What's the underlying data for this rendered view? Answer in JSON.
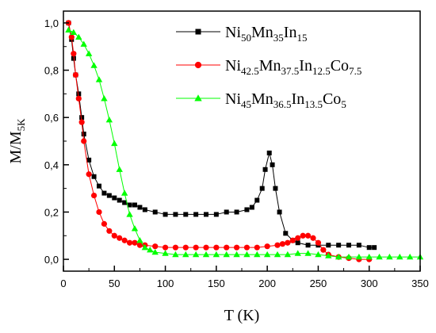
{
  "chart_data": {
    "type": "scatter",
    "xlabel": "T (K)",
    "ylabel": {
      "main": "M/M",
      "sub": "5K"
    },
    "xlim": [
      0,
      350
    ],
    "ylim": [
      -0.05,
      1.05
    ],
    "xticks": [
      "0",
      "50",
      "100",
      "150",
      "200",
      "250",
      "300",
      "350"
    ],
    "yticks": [
      "0,0",
      "0,2",
      "0,4",
      "0,6",
      "0,8",
      "1,0"
    ],
    "grid": false,
    "legend_position": "top-right",
    "series": [
      {
        "name": "Ni50Mn35In15",
        "legend": [
          {
            "t": "Ni"
          },
          {
            "t": "50",
            "sub": true
          },
          {
            "t": "Mn"
          },
          {
            "t": "35",
            "sub": true
          },
          {
            "t": "In"
          },
          {
            "t": "15",
            "sub": true
          }
        ],
        "color": "#000000",
        "marker": "square",
        "x": [
          5,
          8,
          10,
          12,
          15,
          18,
          20,
          25,
          30,
          35,
          40,
          45,
          50,
          55,
          60,
          65,
          70,
          75,
          80,
          90,
          100,
          110,
          120,
          130,
          140,
          150,
          160,
          170,
          180,
          185,
          190,
          195,
          198,
          202,
          205,
          208,
          212,
          218,
          225,
          230,
          240,
          250,
          260,
          270,
          280,
          290,
          300,
          305
        ],
        "y": [
          1.0,
          0.93,
          0.85,
          0.78,
          0.7,
          0.6,
          0.53,
          0.42,
          0.35,
          0.31,
          0.28,
          0.27,
          0.26,
          0.25,
          0.24,
          0.23,
          0.23,
          0.22,
          0.21,
          0.2,
          0.19,
          0.19,
          0.19,
          0.19,
          0.19,
          0.19,
          0.2,
          0.2,
          0.21,
          0.22,
          0.25,
          0.3,
          0.38,
          0.45,
          0.4,
          0.3,
          0.2,
          0.11,
          0.08,
          0.07,
          0.06,
          0.06,
          0.06,
          0.06,
          0.06,
          0.06,
          0.05,
          0.05
        ]
      },
      {
        "name": "Ni42.5Mn37.5In12.5Co7.5",
        "legend": [
          {
            "t": "Ni"
          },
          {
            "t": "42.5",
            "sub": true
          },
          {
            "t": "Mn"
          },
          {
            "t": "37.5",
            "sub": true
          },
          {
            "t": "In"
          },
          {
            "t": "12.5",
            "sub": true
          },
          {
            "t": "Co"
          },
          {
            "t": "7.5",
            "sub": true
          }
        ],
        "color": "#ff0000",
        "marker": "circle",
        "x": [
          5,
          8,
          10,
          12,
          15,
          18,
          20,
          25,
          30,
          35,
          40,
          45,
          50,
          55,
          60,
          65,
          70,
          75,
          80,
          90,
          100,
          110,
          120,
          130,
          140,
          150,
          160,
          170,
          180,
          190,
          200,
          210,
          215,
          220,
          225,
          230,
          235,
          240,
          245,
          250,
          255,
          260,
          270,
          280,
          290,
          300
        ],
        "y": [
          1.0,
          0.94,
          0.87,
          0.78,
          0.68,
          0.58,
          0.5,
          0.36,
          0.27,
          0.2,
          0.15,
          0.12,
          0.1,
          0.09,
          0.08,
          0.07,
          0.07,
          0.06,
          0.06,
          0.055,
          0.05,
          0.05,
          0.05,
          0.05,
          0.05,
          0.05,
          0.05,
          0.05,
          0.05,
          0.05,
          0.055,
          0.06,
          0.065,
          0.07,
          0.08,
          0.09,
          0.1,
          0.1,
          0.09,
          0.07,
          0.04,
          0.02,
          0.01,
          0.005,
          0.0,
          0.0
        ]
      },
      {
        "name": "Ni45Mn36.5In13.5Co5",
        "legend": [
          {
            "t": "Ni"
          },
          {
            "t": "45",
            "sub": true
          },
          {
            "t": "Mn"
          },
          {
            "t": "36.5",
            "sub": true
          },
          {
            "t": "In"
          },
          {
            "t": "13.5",
            "sub": true
          },
          {
            "t": "Co"
          },
          {
            "t": "5",
            "sub": true
          }
        ],
        "color": "#00ff00",
        "marker": "triangle",
        "x": [
          5,
          10,
          15,
          20,
          25,
          30,
          35,
          40,
          45,
          50,
          55,
          60,
          65,
          70,
          75,
          80,
          85,
          90,
          100,
          110,
          120,
          130,
          140,
          150,
          160,
          170,
          180,
          190,
          200,
          210,
          220,
          230,
          240,
          250,
          260,
          270,
          280,
          290,
          300,
          310,
          320,
          330,
          340,
          350
        ],
        "y": [
          0.97,
          0.96,
          0.94,
          0.91,
          0.87,
          0.82,
          0.76,
          0.68,
          0.59,
          0.49,
          0.38,
          0.28,
          0.19,
          0.13,
          0.08,
          0.05,
          0.04,
          0.03,
          0.025,
          0.02,
          0.02,
          0.02,
          0.02,
          0.02,
          0.02,
          0.02,
          0.02,
          0.02,
          0.02,
          0.02,
          0.02,
          0.025,
          0.025,
          0.02,
          0.015,
          0.01,
          0.01,
          0.01,
          0.01,
          0.01,
          0.01,
          0.01,
          0.01,
          0.01
        ]
      }
    ]
  }
}
